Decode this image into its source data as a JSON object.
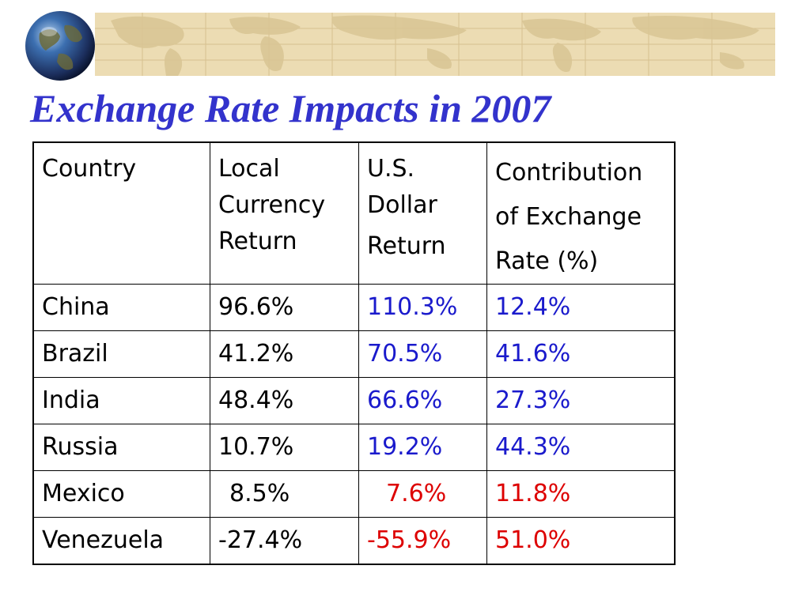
{
  "title": "Exchange Rate Impacts in 2007",
  "colors": {
    "title": "#3333cc",
    "positive_value": "#1a1acc",
    "negative_value": "#dd0000",
    "banner": "#ecdcb3"
  },
  "table": {
    "headers": {
      "country": [
        "Country"
      ],
      "local": [
        "Local",
        "Currency",
        "Return"
      ],
      "usd": [
        "U.S.",
        "Dollar",
        "Return"
      ],
      "contrib": [
        "Contribution",
        "of Exchange",
        "Rate (%)"
      ]
    },
    "rows": [
      {
        "country": "China",
        "local": "96.6%",
        "usd": "110.3%",
        "contrib": "12.4%"
      },
      {
        "country": "Brazil",
        "local": "41.2%",
        "usd": "70.5%",
        "contrib": "41.6%"
      },
      {
        "country": "India",
        "local": "48.4%",
        "usd": "66.6%",
        "contrib": "27.3%"
      },
      {
        "country": "Russia",
        "local": "10.7%",
        "usd": "19.2%",
        "contrib": "44.3%"
      },
      {
        "country": "Mexico",
        "local": "8.5%",
        "usd": "7.6%",
        "contrib": "11.8%"
      },
      {
        "country": "Venezuela",
        "local": "-27.4%",
        "usd": "-55.9%",
        "contrib": "51.0%"
      }
    ]
  },
  "icons": {
    "globe": "globe-icon",
    "banner": "world-map-banner"
  }
}
